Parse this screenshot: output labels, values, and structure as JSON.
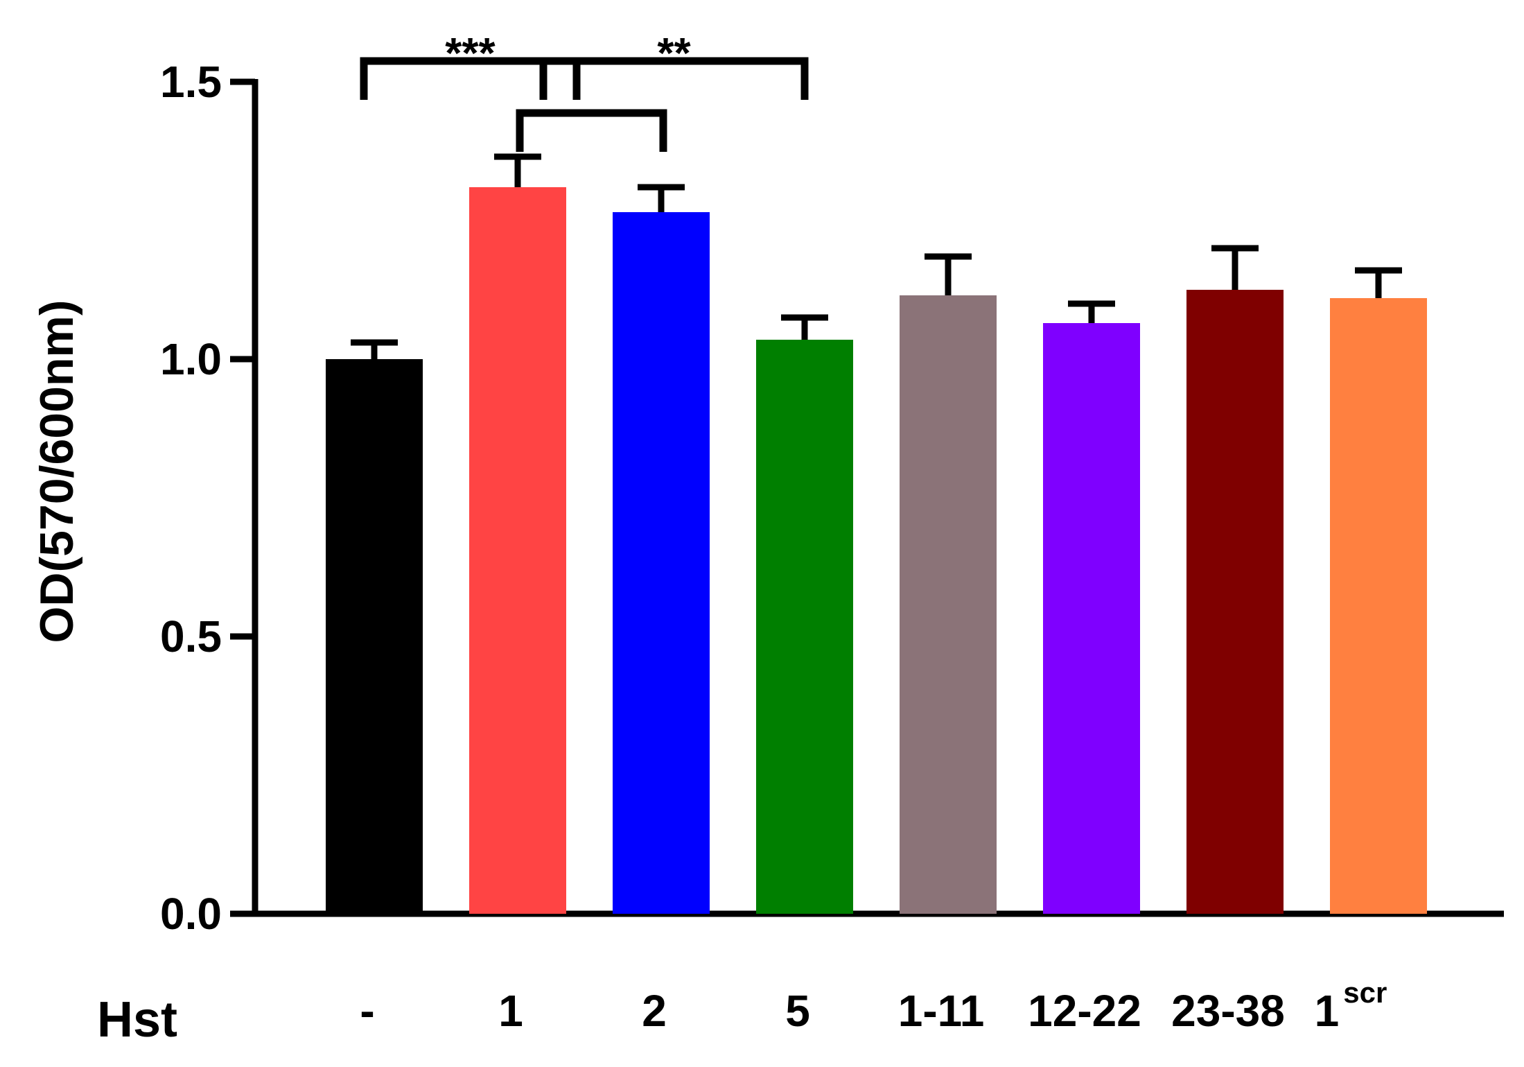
{
  "chart_data": {
    "type": "bar",
    "ylabel": "OD(570/600nm)",
    "x_row_label": "Hst",
    "ylim": [
      0,
      1.5
    ],
    "yticks": [
      "0.0",
      "0.5",
      "1.0",
      "1.5"
    ],
    "categories": [
      {
        "label": "-",
        "sup": ""
      },
      {
        "label": "1",
        "sup": ""
      },
      {
        "label": "2",
        "sup": ""
      },
      {
        "label": "5",
        "sup": ""
      },
      {
        "label": "1-11",
        "sup": ""
      },
      {
        "label": "12-22",
        "sup": ""
      },
      {
        "label": "23-38",
        "sup": ""
      },
      {
        "label": "1",
        "sup": "scr"
      }
    ],
    "values": [
      1.0,
      1.31,
      1.265,
      1.035,
      1.115,
      1.065,
      1.125,
      1.11
    ],
    "errors": [
      0.03,
      0.055,
      0.045,
      0.04,
      0.07,
      0.035,
      0.075,
      0.05
    ],
    "colors": [
      "#000000",
      "#ff4444",
      "#0000ff",
      "#007f00",
      "#8b7378",
      "#7f00ff",
      "#7f0000",
      "#ff8040"
    ],
    "significance": [
      {
        "from": 0,
        "to": 2,
        "label": "***"
      },
      {
        "from": 2,
        "to": 3,
        "label": "**"
      },
      {
        "from": 1,
        "to": 2,
        "label": ""
      }
    ]
  }
}
